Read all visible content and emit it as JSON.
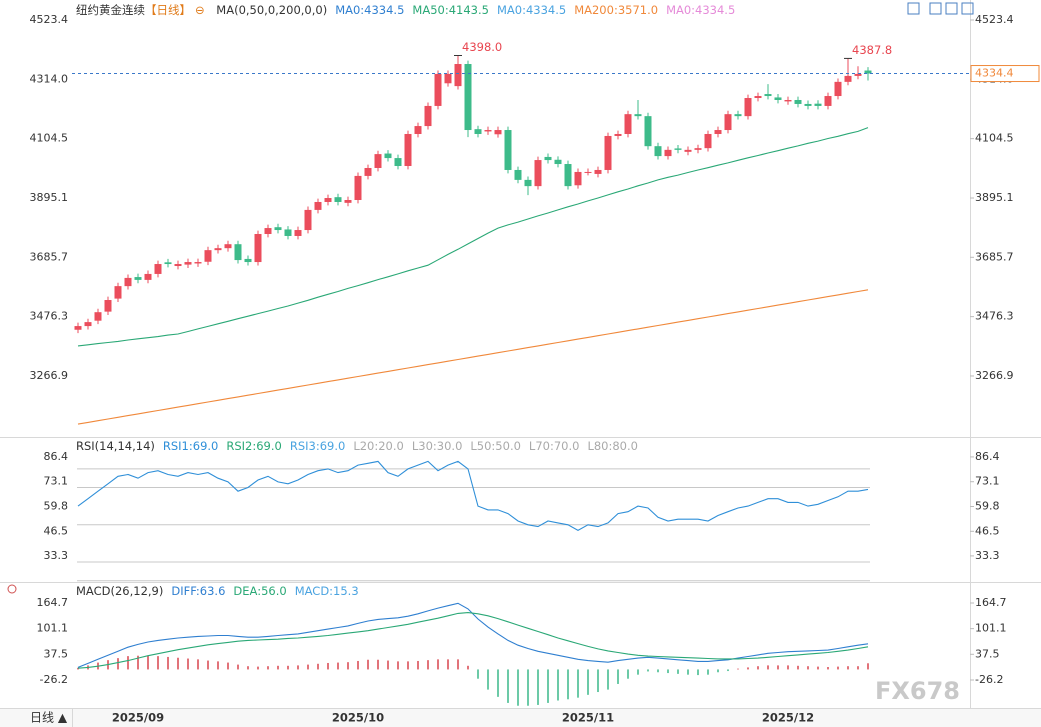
{
  "chart_data": [
    {
      "type": "candlestick",
      "title": "纽约黄金连续",
      "period": "【日线】",
      "legend": [
        {
          "text": "MA(0,50,0,200,0,0)",
          "color": "#333333"
        },
        {
          "text": "MA0:4334.5",
          "color": "#2f7fd0"
        },
        {
          "text": "MA50:4143.5",
          "color": "#2aa876"
        },
        {
          "text": "MA0:4334.5",
          "color": "#4aa3e0"
        },
        {
          "text": "MA200:3571.0",
          "color": "#f0883a"
        },
        {
          "text": "MA0:4334.5",
          "color": "#e58ad8"
        }
      ],
      "categories": [
        null,
        null,
        null,
        null,
        null,
        null,
        "2025/09",
        null,
        null,
        null,
        null,
        null,
        null,
        null,
        null,
        null,
        null,
        null,
        null,
        null,
        null,
        null,
        null,
        null,
        null,
        null,
        null,
        null,
        "2025/10",
        null,
        null,
        null,
        null,
        null,
        null,
        null,
        null,
        null,
        null,
        null,
        null,
        null,
        null,
        null,
        null,
        null,
        null,
        null,
        null,
        null,
        null,
        "2025/11",
        null,
        null,
        null,
        null,
        null,
        null,
        null,
        null,
        null,
        null,
        null,
        null,
        null,
        null,
        null,
        null,
        null,
        null,
        null,
        "2025/12",
        null,
        null,
        null,
        null,
        null,
        null,
        null,
        null
      ],
      "open": [
        3430,
        3443,
        3462,
        3494,
        3540,
        3584,
        3616,
        3606,
        3627,
        3668,
        3655,
        3660,
        3664,
        3670,
        3711,
        3718,
        3732,
        3680,
        3669,
        3768,
        3792,
        3784,
        3761,
        3782,
        3853,
        3881,
        3898,
        3878,
        3888,
        3973,
        4001,
        4052,
        4036,
        4008,
        4121,
        4149,
        4220,
        4300,
        4290,
        4368,
        4138,
        4130,
        4120,
        4135,
        3994,
        3959,
        3937,
        4040,
        4030,
        4015,
        3940,
        3987,
        3980,
        3994,
        4114,
        4121,
        4191,
        4184,
        4078,
        4043,
        4070,
        4058,
        4065,
        4071,
        4121,
        4135,
        4191,
        4184,
        4248,
        4262,
        4250,
        4236,
        4241,
        4227,
        4228,
        4220,
        4255,
        4305,
        4326,
        4345
      ],
      "high": [
        3455,
        3469,
        3504,
        3547,
        3596,
        3625,
        3628,
        3639,
        3674,
        3680,
        3674,
        3681,
        3681,
        3723,
        3730,
        3744,
        3744,
        3692,
        3780,
        3801,
        3804,
        3796,
        3794,
        3865,
        3893,
        3907,
        3910,
        3900,
        3985,
        4013,
        4062,
        4064,
        4048,
        4133,
        4161,
        4232,
        4345,
        4345,
        4398.0,
        4380,
        4150,
        4147,
        4147,
        4147,
        4006,
        3971,
        4041,
        4052,
        4042,
        4027,
        3999,
        3999,
        4006,
        4126,
        4133,
        4203,
        4241,
        4196,
        4090,
        4077,
        4082,
        4077,
        4083,
        4133,
        4147,
        4203,
        4203,
        4260,
        4267,
        4297,
        4262,
        4253,
        4253,
        4239,
        4240,
        4267,
        4317,
        4387.8,
        4360,
        4357
      ],
      "low": [
        3418,
        3431,
        3450,
        3482,
        3528,
        3572,
        3594,
        3594,
        3615,
        3650,
        3643,
        3648,
        3652,
        3658,
        3699,
        3706,
        3664,
        3657,
        3657,
        3756,
        3770,
        3749,
        3749,
        3770,
        3841,
        3869,
        3869,
        3866,
        3876,
        3961,
        3989,
        4024,
        3996,
        3996,
        4109,
        4137,
        4208,
        4288,
        4278,
        4110,
        4109,
        4118,
        4108,
        3982,
        3947,
        3905,
        3925,
        4017,
        4003,
        3925,
        3928,
        3975,
        3968,
        3982,
        4102,
        4109,
        4172,
        4066,
        4031,
        4031,
        4053,
        4046,
        4053,
        4059,
        4109,
        4123,
        4172,
        4172,
        4236,
        4243,
        4229,
        4224,
        4215,
        4208,
        4208,
        4208,
        4243,
        4293,
        4314,
        4310
      ],
      "close": [
        3443,
        3457,
        3492,
        3535,
        3584,
        3613,
        3606,
        3627,
        3662,
        3662,
        3662,
        3669,
        3669,
        3711,
        3718,
        3732,
        3676,
        3669,
        3768,
        3789,
        3782,
        3761,
        3782,
        3853,
        3881,
        3895,
        3881,
        3888,
        3973,
        4001,
        4050,
        4036,
        4008,
        4121,
        4149,
        4220,
        4333,
        4333,
        4368,
        4135,
        4121,
        4135,
        4135,
        3994,
        3959,
        3937,
        4029,
        4029,
        4015,
        3937,
        3987,
        3987,
        3994,
        4114,
        4121,
        4191,
        4184,
        4078,
        4043,
        4065,
        4065,
        4065,
        4071,
        4121,
        4135,
        4191,
        4184,
        4248,
        4255,
        4255,
        4241,
        4241,
        4227,
        4220,
        4220,
        4255,
        4305,
        4326,
        4333,
        4334.4
      ],
      "up_color": "#eb4d5c",
      "down_color": "#3dbb8a",
      "series": [
        {
          "color": "#2aa876",
          "values": [
            3373,
            3377,
            3381,
            3385,
            3389,
            3394,
            3398,
            3402,
            3406,
            3411,
            3415,
            3424,
            3433,
            3442,
            3451,
            3460,
            3469,
            3478,
            3487,
            3496,
            3505,
            3514,
            3524,
            3534,
            3545,
            3555,
            3565,
            3576,
            3586,
            3596,
            3607,
            3617,
            3627,
            3638,
            3648,
            3658,
            3677,
            3696,
            3714,
            3733,
            3752,
            3771,
            3789,
            3800,
            3810,
            3821,
            3832,
            3842,
            3853,
            3864,
            3874,
            3885,
            3895,
            3906,
            3917,
            3927,
            3938,
            3948,
            3959,
            3968,
            3976,
            3985,
            3994,
            4002,
            4011,
            4019,
            4028,
            4037,
            4045,
            4054,
            4062,
            4071,
            4079,
            4088,
            4096,
            4105,
            4113,
            4122,
            4130,
            4143.5
          ]
        },
        {
          "color": "#f0883a",
          "values": [
            3097,
            3103,
            3109,
            3115,
            3121,
            3127,
            3133,
            3139,
            3145,
            3151,
            3157,
            3163,
            3169,
            3175,
            3181,
            3187,
            3193,
            3199,
            3205,
            3211,
            3217,
            3223,
            3229,
            3235,
            3241,
            3247,
            3253,
            3259,
            3265,
            3271,
            3277,
            3283,
            3289,
            3295,
            3301,
            3307,
            3313,
            3319,
            3325,
            3331,
            3337,
            3343,
            3349,
            3355,
            3361,
            3367,
            3373,
            3379,
            3385,
            3391,
            3397,
            3403,
            3409,
            3415,
            3421,
            3427,
            3433,
            3439,
            3445,
            3451,
            3457,
            3463,
            3469,
            3475,
            3481,
            3487,
            3493,
            3499,
            3505,
            3511,
            3517,
            3523,
            3529,
            3535,
            3541,
            3547,
            3553,
            3559,
            3565,
            3571.0
          ]
        }
      ],
      "annotations": [
        {
          "value": 4398.0,
          "label": "4398.0"
        },
        {
          "value": 4387.8,
          "label": "4387.8"
        }
      ],
      "last_price": 4334.4,
      "last_price_color": "#f0883a",
      "ylim": [
        3055,
        4576.3
      ],
      "yticks": [
        4523.4,
        {
          "value": 4314,
          "label": "4314.0"
        },
        4104.5,
        3895.1,
        3685.7,
        3476.3,
        3266.9
      ]
    },
    {
      "type": "line",
      "legend": [
        {
          "text": "RSI(14,14,14)",
          "color": "#333333"
        },
        {
          "text": "RSI1:69.0",
          "color": "#2f8fd8"
        },
        {
          "text": "RSI2:69.0",
          "color": "#2aa876"
        },
        {
          "text": "RSI3:69.0",
          "color": "#4aa3e0"
        },
        {
          "text": "L20:20.0",
          "color": "#aaaaaa"
        },
        {
          "text": "L30:30.0",
          "color": "#aaaaaa"
        },
        {
          "text": "L50:50.0",
          "color": "#aaaaaa"
        },
        {
          "text": "L70:70.0",
          "color": "#aaaaaa"
        },
        {
          "text": "L80:80.0",
          "color": "#aaaaaa"
        }
      ],
      "series": [
        {
          "color": "#2f8fd8",
          "values": [
            60,
            64,
            68,
            72,
            76,
            77,
            75,
            78,
            79,
            77,
            76,
            78,
            77,
            78,
            75,
            73,
            68,
            70,
            74,
            76,
            73,
            72,
            74,
            77,
            79,
            80,
            78,
            79,
            82,
            83,
            84,
            78,
            76,
            80,
            82,
            84,
            79,
            82,
            84,
            80,
            60,
            58,
            58,
            56,
            52,
            50,
            49,
            52,
            51,
            50,
            47,
            50,
            49,
            51,
            56,
            57,
            60,
            59,
            54,
            52,
            53,
            53,
            53,
            52,
            55,
            57,
            59,
            60,
            62,
            64,
            64,
            62,
            62,
            60,
            61,
            63,
            65,
            68,
            68,
            69.0
          ]
        }
      ],
      "ref_lines": [
        20,
        30,
        50,
        70,
        80
      ],
      "ylim": [
        19.3,
        92.8
      ],
      "yticks": [
        86.4,
        73.1,
        59.8,
        46.5,
        33.3
      ]
    },
    {
      "type": "macd",
      "legend": [
        {
          "text": "MACD(26,12,9)",
          "color": "#333333"
        },
        {
          "text": "DIFF:63.6",
          "color": "#2f7fd0"
        },
        {
          "text": "DEA:56.0",
          "color": "#2aa876"
        },
        {
          "text": "MACD:15.3",
          "color": "#4aa3e0"
        }
      ],
      "series": [
        {
          "color": "#2f7fd0",
          "values": [
            5,
            15,
            25,
            35,
            45,
            55,
            62,
            68,
            72,
            75,
            78,
            80,
            82,
            83,
            84,
            84,
            82,
            80,
            80,
            82,
            84,
            86,
            88,
            92,
            96,
            100,
            104,
            108,
            114,
            120,
            124,
            126,
            128,
            132,
            138,
            145,
            152,
            158,
            164,
            150,
            125,
            105,
            88,
            72,
            60,
            52,
            45,
            40,
            35,
            30,
            25,
            22,
            20,
            18,
            22,
            25,
            28,
            30,
            28,
            26,
            24,
            22,
            20,
            20,
            22,
            24,
            28,
            32,
            36,
            40,
            42,
            44,
            45,
            46,
            47,
            48,
            52,
            56,
            60,
            63.6
          ]
        },
        {
          "color": "#2aa876",
          "values": [
            3,
            5,
            8,
            12,
            17,
            22,
            28,
            34,
            39,
            44,
            49,
            53,
            57,
            61,
            64,
            67,
            70,
            72,
            73,
            74,
            75,
            77,
            78,
            80,
            82,
            84,
            87,
            90,
            93,
            96,
            100,
            104,
            108,
            112,
            117,
            122,
            127,
            133,
            139,
            141,
            138,
            133,
            126,
            118,
            110,
            102,
            94,
            86,
            78,
            71,
            64,
            57,
            51,
            46,
            42,
            38,
            35,
            33,
            32,
            31,
            30,
            29,
            28,
            27,
            26,
            26,
            26,
            27,
            28,
            30,
            32,
            34,
            36,
            38,
            40,
            42,
            45,
            48,
            52,
            56.0
          ]
        }
      ],
      "histogram": {
        "up_color": "#d9454f",
        "down_color": "#3cb88a",
        "values": [
          4,
          10,
          17,
          23,
          28,
          33,
          34,
          34,
          33,
          31,
          29,
          27,
          25,
          22,
          20,
          17,
          12,
          8,
          7,
          8,
          9,
          9,
          10,
          12,
          14,
          16,
          17,
          18,
          21,
          24,
          24,
          22,
          20,
          20,
          21,
          23,
          25,
          25,
          25,
          9,
          -23,
          -50,
          -68,
          -83,
          -90,
          -90,
          -88,
          -83,
          -77,
          -74,
          -70,
          -63,
          -56,
          -50,
          -36,
          -23,
          -13,
          -5,
          -7,
          -9,
          -11,
          -13,
          -14,
          -13,
          -7,
          -4,
          2,
          5,
          8,
          10,
          10,
          10,
          9,
          8,
          7,
          6,
          7,
          8,
          8,
          15.3
        ]
      },
      "ylim": [
        -95.6,
        209.3
      ],
      "yticks": [
        164.7,
        101.1,
        37.5,
        -26.2
      ]
    }
  ],
  "bottom_button": "日线 ▲",
  "watermark": "FX678"
}
